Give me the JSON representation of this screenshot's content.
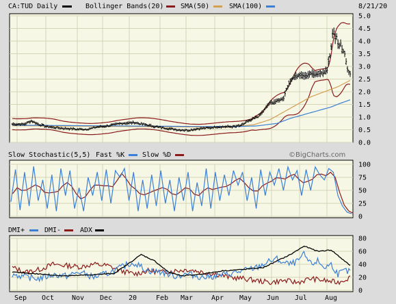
{
  "chart_data": [
    {
      "type": "ohlc",
      "header": {
        "ticker": "CA:TUD Daily",
        "date": "8/21/20",
        "legend": [
          {
            "label": "Bollinger Bands(20)",
            "color": "#8b1a1a"
          },
          {
            "label": "SMA(50)",
            "color": "#d2a050"
          },
          {
            "label": "SMA(100)",
            "color": "#3a7fd5"
          }
        ]
      },
      "ylim": [
        0,
        5
      ],
      "yticks": [
        "0.0",
        "0.5",
        "1.0",
        "1.5",
        "2.0",
        "2.5",
        "3.0",
        "3.5",
        "4.0",
        "4.5",
        "5.0"
      ],
      "grid": true,
      "price_anchors": {
        "x": [
          0,
          9,
          14,
          20,
          26,
          33,
          40,
          47,
          55,
          62,
          70,
          80,
          90,
          100,
          108,
          115,
          122,
          130,
          138,
          146,
          152,
          158,
          163,
          167,
          170,
          172,
          175,
          178,
          182,
          186,
          188,
          190,
          193,
          196,
          198,
          200,
          202,
          204,
          206,
          208,
          212,
          216,
          219,
          221,
          224,
          227,
          230,
          232,
          233,
          234,
          235,
          236,
          237,
          238,
          239,
          240,
          241,
          242,
          243,
          244,
          245,
          246,
          247,
          248,
          249
        ],
        "y": [
          0.72,
          0.72,
          0.85,
          0.7,
          0.62,
          0.58,
          0.55,
          0.52,
          0.52,
          0.6,
          0.65,
          0.75,
          0.78,
          0.68,
          0.6,
          0.55,
          0.5,
          0.48,
          0.55,
          0.58,
          0.62,
          0.62,
          0.62,
          0.65,
          0.7,
          0.8,
          0.85,
          0.95,
          1.05,
          1.3,
          1.45,
          1.55,
          1.6,
          1.65,
          1.7,
          1.75,
          2.1,
          2.3,
          2.5,
          2.6,
          2.65,
          2.62,
          2.7,
          2.72,
          2.7,
          2.72,
          2.8,
          2.85,
          3.2,
          3.4,
          3.8,
          4.3,
          4.4,
          4.1,
          4.2,
          3.9,
          3.8,
          3.9,
          3.7,
          3.6,
          3.5,
          3.2,
          2.9,
          2.75,
          2.7
        ]
      },
      "sma50": {
        "x": [
          0,
          160,
          178,
          190,
          200,
          210,
          220,
          230,
          240,
          249
        ],
        "y": [
          0.66,
          0.6,
          0.7,
          0.9,
          1.2,
          1.5,
          1.8,
          2.0,
          2.2,
          2.45
        ]
      },
      "sma100": {
        "x": [
          0,
          160,
          180,
          195,
          205,
          215,
          225,
          235,
          242,
          249
        ],
        "y": [
          0.68,
          0.62,
          0.65,
          0.75,
          0.95,
          1.1,
          1.25,
          1.4,
          1.55,
          1.68
        ]
      },
      "bollinger_width": 0.22
    },
    {
      "type": "line",
      "header": {
        "title": "Slow Stochastic(5,5)",
        "legend": [
          {
            "label": "Fast %K",
            "color": "#3a7fd5"
          },
          {
            "label": "Slow %D",
            "color": "#8b1a1a"
          }
        ]
      },
      "ylim": [
        0,
        100
      ],
      "yticks": [
        "0",
        "25",
        "50",
        "75",
        "100"
      ],
      "watermark": "©BigCharts.com",
      "k_points": [
        28,
        90,
        12,
        85,
        20,
        96,
        30,
        70,
        15,
        80,
        10,
        92,
        40,
        88,
        15,
        55,
        10,
        75,
        40,
        85,
        30,
        90,
        25,
        88,
        75,
        92,
        30,
        85,
        10,
        70,
        15,
        80,
        20,
        88,
        25,
        70,
        10,
        75,
        30,
        85,
        10,
        65,
        20,
        92,
        15,
        85,
        30,
        80,
        40,
        88,
        60,
        85,
        30,
        75,
        15,
        90,
        40,
        85,
        60,
        92,
        50,
        95,
        70,
        88,
        40,
        90,
        50,
        95,
        80,
        70,
        92,
        85,
        40,
        20,
        8,
        5
      ]
    },
    {
      "type": "line",
      "header": {
        "legend": [
          {
            "label": "DMI+",
            "color": "#3a7fd5"
          },
          {
            "label": "DMI-",
            "color": "#8b1a1a"
          },
          {
            "label": "ADX",
            "color": "#000000"
          }
        ]
      },
      "ylim": [
        0,
        80
      ],
      "yticks": [
        "0",
        "20",
        "40",
        "60",
        "80"
      ],
      "x_labels": [
        "Sep",
        "Oct",
        "Nov",
        "Dec",
        "20",
        "Feb",
        "Mar",
        "Apr",
        "May",
        "Jun",
        "Jul",
        "Aug"
      ],
      "dmi_plus": {
        "x": [
          0,
          10,
          20,
          30,
          40,
          50,
          60,
          70,
          80,
          85,
          90,
          100,
          110,
          120,
          130,
          140,
          150,
          160,
          170,
          180,
          185,
          190,
          195,
          200,
          205,
          210,
          215,
          220,
          225,
          230,
          235,
          240,
          245,
          249
        ],
        "y": [
          25,
          20,
          18,
          24,
          22,
          28,
          20,
          26,
          35,
          40,
          42,
          30,
          28,
          22,
          25,
          20,
          22,
          25,
          30,
          35,
          40,
          45,
          48,
          42,
          40,
          44,
          55,
          40,
          45,
          35,
          40,
          25,
          30,
          28
        ]
      },
      "dmi_minus": {
        "x": [
          0,
          10,
          20,
          30,
          40,
          50,
          60,
          70,
          80,
          90,
          100,
          110,
          120,
          130,
          140,
          150,
          160,
          170,
          180,
          190,
          200,
          210,
          220,
          230,
          240,
          249
        ],
        "y": [
          35,
          28,
          32,
          40,
          38,
          36,
          40,
          38,
          30,
          25,
          30,
          28,
          30,
          32,
          28,
          25,
          20,
          18,
          15,
          12,
          15,
          12,
          18,
          15,
          12,
          20
        ]
      },
      "adx": {
        "x": [
          0,
          20,
          40,
          60,
          75,
          85,
          95,
          105,
          115,
          125,
          140,
          155,
          170,
          185,
          195,
          205,
          215,
          225,
          235,
          242,
          249
        ],
        "y": [
          28,
          25,
          22,
          24,
          26,
          40,
          55,
          45,
          28,
          22,
          25,
          30,
          32,
          35,
          45,
          55,
          68,
          60,
          62,
          50,
          38
        ]
      }
    }
  ]
}
